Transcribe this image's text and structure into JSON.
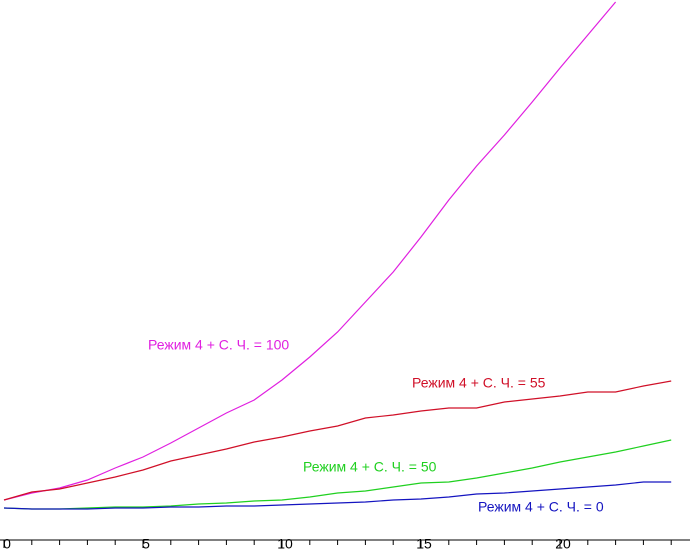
{
  "chart_data": {
    "type": "line",
    "x": [
      0,
      1,
      2,
      3,
      4,
      5,
      6,
      7,
      8,
      9,
      10,
      11,
      12,
      13,
      14,
      15,
      16,
      17,
      18,
      19,
      20,
      21,
      22,
      23,
      24
    ],
    "xlim": [
      0,
      24.7
    ],
    "xticks": [
      0,
      5,
      10,
      15,
      20
    ],
    "xminorticks": [
      1,
      2,
      3,
      4,
      6,
      7,
      8,
      9,
      11,
      12,
      13,
      14,
      16,
      17,
      18,
      19,
      21,
      22,
      23,
      24
    ],
    "ylim": [
      0,
      540
    ],
    "series": [
      {
        "name": "Режим 4 + С. Ч. = 100",
        "color": "#e020e0",
        "values": [
          40,
          47,
          52,
          60,
          72,
          83,
          97,
          112,
          127,
          140,
          160,
          183,
          208,
          238,
          268,
          303,
          340,
          374,
          405,
          438,
          472,
          505,
          538,
          null,
          null
        ]
      },
      {
        "name": "Режим 4 + С. Ч. = 55",
        "color": "#d01028",
        "values": [
          40,
          48,
          51,
          57,
          63,
          70,
          79,
          85,
          91,
          98,
          103,
          109,
          114,
          122,
          125,
          129,
          132,
          132,
          138,
          141,
          144,
          148,
          148,
          154,
          159
        ]
      },
      {
        "name": "Режим 4 + С. Ч. = 50",
        "color": "#20d020",
        "values": [
          32,
          31,
          31,
          32,
          33,
          33,
          34,
          36,
          37,
          39,
          40,
          43,
          47,
          49,
          53,
          57,
          58,
          62,
          67,
          72,
          78,
          83,
          88,
          94,
          100
        ]
      },
      {
        "name": "Режим 4 + С. Ч. = 0",
        "color": "#1414c0",
        "values": [
          32,
          31,
          31,
          31,
          32,
          32,
          33,
          33,
          34,
          34,
          35,
          36,
          37,
          38,
          40,
          41,
          43,
          46,
          47,
          49,
          51,
          53,
          55,
          58,
          58
        ]
      }
    ]
  }
}
